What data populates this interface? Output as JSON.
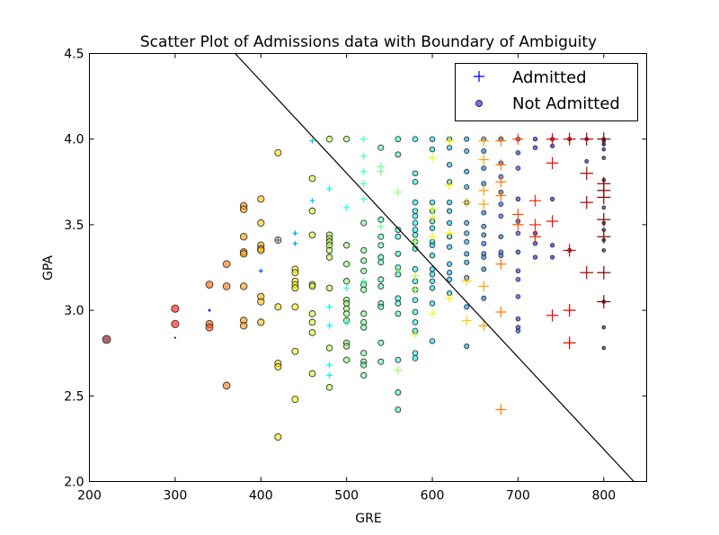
{
  "chart_data": {
    "type": "scatter",
    "title": "Scatter Plot of Admissions data with Boundary of Ambiguity",
    "xlabel": "GRE",
    "ylabel": "GPA",
    "xlim": [
      200,
      850
    ],
    "ylim": [
      2.0,
      4.5
    ],
    "xticks": [
      200,
      300,
      400,
      500,
      600,
      700,
      800
    ],
    "yticks": [
      2.0,
      2.5,
      3.0,
      3.5,
      4.0,
      4.5
    ],
    "xtick_labels": [
      "200",
      "300",
      "400",
      "500",
      "600",
      "700",
      "800"
    ],
    "ytick_labels": [
      "2.0",
      "2.5",
      "3.0",
      "3.5",
      "4.0",
      "4.5"
    ],
    "grid": false,
    "legend_position": "top-right",
    "boundary_line": {
      "points": [
        [
          370,
          4.5
        ],
        [
          835,
          2.0
        ]
      ],
      "color": "#000000"
    },
    "series": [
      {
        "name": "Admitted",
        "marker": "plus",
        "legend_color": "#0000ff",
        "points": [
          [
            300,
            2.84
          ],
          [
            340,
            3.0
          ],
          [
            400,
            3.23
          ],
          [
            420,
            3.41
          ],
          [
            440,
            3.45
          ],
          [
            440,
            3.39
          ],
          [
            460,
            3.99
          ],
          [
            460,
            3.64
          ],
          [
            480,
            3.71
          ],
          [
            480,
            3.02
          ],
          [
            480,
            2.91
          ],
          [
            480,
            2.68
          ],
          [
            480,
            2.62
          ],
          [
            500,
            3.6
          ],
          [
            500,
            3.13
          ],
          [
            500,
            2.93
          ],
          [
            520,
            4.0
          ],
          [
            520,
            3.9
          ],
          [
            520,
            3.81
          ],
          [
            520,
            3.74
          ],
          [
            520,
            3.65
          ],
          [
            520,
            3.17
          ],
          [
            540,
            3.84
          ],
          [
            540,
            3.81
          ],
          [
            540,
            3.49
          ],
          [
            560,
            3.69
          ],
          [
            560,
            2.65
          ],
          [
            560,
            3.23
          ],
          [
            580,
            3.4
          ],
          [
            580,
            3.2
          ],
          [
            580,
            3.12
          ],
          [
            580,
            2.86
          ],
          [
            600,
            3.89
          ],
          [
            600,
            3.59
          ],
          [
            600,
            3.54
          ],
          [
            600,
            3.43
          ],
          [
            600,
            2.98
          ],
          [
            620,
            3.99
          ],
          [
            620,
            3.73
          ],
          [
            620,
            3.45
          ],
          [
            620,
            3.07
          ],
          [
            640,
            3.63
          ],
          [
            640,
            3.17
          ],
          [
            640,
            2.94
          ],
          [
            660,
            3.99
          ],
          [
            660,
            3.88
          ],
          [
            660,
            3.7
          ],
          [
            660,
            3.62
          ],
          [
            660,
            3.14
          ],
          [
            660,
            2.91
          ],
          [
            680,
            3.99
          ],
          [
            680,
            3.85
          ],
          [
            680,
            3.75
          ],
          [
            680,
            3.67
          ],
          [
            680,
            3.27
          ],
          [
            680,
            2.99
          ],
          [
            680,
            2.42
          ],
          [
            700,
            4.0
          ],
          [
            700,
            3.56
          ],
          [
            700,
            3.5
          ],
          [
            720,
            3.64
          ],
          [
            720,
            3.5
          ],
          [
            720,
            3.43
          ],
          [
            740,
            4.0
          ],
          [
            740,
            3.86
          ],
          [
            740,
            3.52
          ],
          [
            740,
            2.97
          ],
          [
            760,
            4.0
          ],
          [
            760,
            3.35
          ],
          [
            760,
            3.0
          ],
          [
            760,
            2.81
          ],
          [
            780,
            4.0
          ],
          [
            780,
            3.8
          ],
          [
            780,
            3.63
          ],
          [
            780,
            3.22
          ],
          [
            800,
            4.0
          ],
          [
            800,
            3.74
          ],
          [
            800,
            3.7
          ],
          [
            800,
            3.66
          ],
          [
            800,
            3.53
          ],
          [
            800,
            3.43
          ],
          [
            800,
            3.22
          ],
          [
            800,
            3.05
          ]
        ]
      },
      {
        "name": "Not Admitted",
        "marker": "circle",
        "legend_color": "#7070ff",
        "points": [
          [
            220,
            2.83
          ],
          [
            300,
            3.01
          ],
          [
            300,
            2.92
          ],
          [
            340,
            3.15
          ],
          [
            340,
            2.92
          ],
          [
            340,
            2.9
          ],
          [
            360,
            3.27
          ],
          [
            360,
            3.14
          ],
          [
            360,
            2.56
          ],
          [
            380,
            3.61
          ],
          [
            380,
            3.59
          ],
          [
            380,
            3.43
          ],
          [
            380,
            3.34
          ],
          [
            380,
            3.33
          ],
          [
            380,
            3.14
          ],
          [
            380,
            2.94
          ],
          [
            380,
            2.91
          ],
          [
            400,
            3.65
          ],
          [
            400,
            3.51
          ],
          [
            400,
            3.38
          ],
          [
            400,
            3.36
          ],
          [
            400,
            3.35
          ],
          [
            400,
            3.08
          ],
          [
            400,
            3.05
          ],
          [
            400,
            2.93
          ],
          [
            420,
            3.92
          ],
          [
            420,
            3.41
          ],
          [
            420,
            3.02
          ],
          [
            420,
            2.69
          ],
          [
            420,
            2.67
          ],
          [
            420,
            2.26
          ],
          [
            440,
            3.24
          ],
          [
            440,
            3.22
          ],
          [
            440,
            3.17
          ],
          [
            440,
            3.15
          ],
          [
            440,
            3.13
          ],
          [
            440,
            3.02
          ],
          [
            440,
            2.76
          ],
          [
            440,
            2.48
          ],
          [
            460,
            3.77
          ],
          [
            460,
            3.58
          ],
          [
            460,
            3.44
          ],
          [
            460,
            3.15
          ],
          [
            460,
            3.14
          ],
          [
            460,
            2.98
          ],
          [
            460,
            2.93
          ],
          [
            460,
            2.87
          ],
          [
            460,
            2.63
          ],
          [
            480,
            4.0
          ],
          [
            480,
            3.44
          ],
          [
            480,
            3.42
          ],
          [
            480,
            3.4
          ],
          [
            480,
            3.38
          ],
          [
            480,
            3.35
          ],
          [
            480,
            3.31
          ],
          [
            480,
            3.13
          ],
          [
            480,
            2.78
          ],
          [
            480,
            2.55
          ],
          [
            500,
            4.0
          ],
          [
            500,
            3.38
          ],
          [
            500,
            3.27
          ],
          [
            500,
            3.17
          ],
          [
            500,
            3.06
          ],
          [
            500,
            3.04
          ],
          [
            500,
            3.01
          ],
          [
            500,
            2.98
          ],
          [
            500,
            2.94
          ],
          [
            500,
            2.81
          ],
          [
            500,
            2.71
          ],
          [
            500,
            2.79
          ],
          [
            520,
            3.51
          ],
          [
            520,
            3.35
          ],
          [
            520,
            3.29
          ],
          [
            520,
            3.23
          ],
          [
            520,
            3.15
          ],
          [
            520,
            3.12
          ],
          [
            520,
            2.98
          ],
          [
            520,
            2.93
          ],
          [
            520,
            2.9
          ],
          [
            520,
            2.75
          ],
          [
            520,
            2.7
          ],
          [
            520,
            2.68
          ],
          [
            520,
            2.62
          ],
          [
            540,
            3.95
          ],
          [
            540,
            3.53
          ],
          [
            540,
            3.43
          ],
          [
            540,
            3.38
          ],
          [
            540,
            3.31
          ],
          [
            540,
            3.28
          ],
          [
            540,
            3.18
          ],
          [
            540,
            3.14
          ],
          [
            540,
            3.04
          ],
          [
            540,
            3.02
          ],
          [
            540,
            2.81
          ],
          [
            540,
            2.7
          ],
          [
            560,
            4.0
          ],
          [
            560,
            3.91
          ],
          [
            560,
            3.47
          ],
          [
            560,
            3.43
          ],
          [
            560,
            3.33
          ],
          [
            560,
            3.25
          ],
          [
            560,
            3.21
          ],
          [
            560,
            3.07
          ],
          [
            560,
            3.04
          ],
          [
            560,
            2.98
          ],
          [
            560,
            2.71
          ],
          [
            560,
            2.52
          ],
          [
            560,
            2.42
          ],
          [
            580,
            4.0
          ],
          [
            580,
            3.8
          ],
          [
            580,
            3.75
          ],
          [
            580,
            3.63
          ],
          [
            580,
            3.58
          ],
          [
            580,
            3.55
          ],
          [
            580,
            3.51
          ],
          [
            580,
            3.47
          ],
          [
            580,
            3.44
          ],
          [
            580,
            3.4
          ],
          [
            580,
            3.36
          ],
          [
            580,
            3.24
          ],
          [
            580,
            3.17
          ],
          [
            580,
            3.12
          ],
          [
            580,
            3.06
          ],
          [
            580,
            2.99
          ],
          [
            580,
            2.93
          ],
          [
            580,
            2.88
          ],
          [
            580,
            2.75
          ],
          [
            580,
            2.72
          ],
          [
            600,
            4.0
          ],
          [
            600,
            3.94
          ],
          [
            600,
            3.63
          ],
          [
            600,
            3.58
          ],
          [
            600,
            3.52
          ],
          [
            600,
            3.48
          ],
          [
            600,
            3.4
          ],
          [
            600,
            3.38
          ],
          [
            600,
            3.32
          ],
          [
            600,
            3.24
          ],
          [
            600,
            3.21
          ],
          [
            600,
            3.17
          ],
          [
            600,
            3.13
          ],
          [
            600,
            3.04
          ],
          [
            600,
            2.82
          ],
          [
            620,
            4.0
          ],
          [
            620,
            3.95
          ],
          [
            620,
            3.85
          ],
          [
            620,
            3.75
          ],
          [
            620,
            3.63
          ],
          [
            620,
            3.58
          ],
          [
            620,
            3.51
          ],
          [
            620,
            3.43
          ],
          [
            620,
            3.37
          ],
          [
            620,
            3.27
          ],
          [
            620,
            3.22
          ],
          [
            620,
            3.18
          ],
          [
            620,
            3.1
          ],
          [
            640,
            4.0
          ],
          [
            640,
            3.93
          ],
          [
            640,
            3.81
          ],
          [
            640,
            3.72
          ],
          [
            640,
            3.63
          ],
          [
            640,
            3.51
          ],
          [
            640,
            3.45
          ],
          [
            640,
            3.4
          ],
          [
            640,
            3.33
          ],
          [
            640,
            3.28
          ],
          [
            640,
            3.19
          ],
          [
            640,
            3.02
          ],
          [
            640,
            2.79
          ],
          [
            660,
            4.0
          ],
          [
            660,
            3.93
          ],
          [
            660,
            3.83
          ],
          [
            660,
            3.74
          ],
          [
            660,
            3.57
          ],
          [
            660,
            3.49
          ],
          [
            660,
            3.44
          ],
          [
            660,
            3.39
          ],
          [
            660,
            3.33
          ],
          [
            660,
            3.31
          ],
          [
            660,
            3.24
          ],
          [
            660,
            3.07
          ],
          [
            680,
            4.0
          ],
          [
            680,
            3.86
          ],
          [
            680,
            3.78
          ],
          [
            680,
            3.69
          ],
          [
            680,
            3.62
          ],
          [
            680,
            3.55
          ],
          [
            680,
            3.43
          ],
          [
            680,
            3.34
          ],
          [
            680,
            3.32
          ],
          [
            700,
            4.0
          ],
          [
            700,
            3.92
          ],
          [
            700,
            3.83
          ],
          [
            700,
            3.65
          ],
          [
            700,
            3.52
          ],
          [
            700,
            3.45
          ],
          [
            700,
            3.34
          ],
          [
            700,
            3.23
          ],
          [
            700,
            3.18
          ],
          [
            700,
            3.08
          ],
          [
            700,
            2.95
          ],
          [
            700,
            2.9
          ],
          [
            700,
            2.88
          ],
          [
            720,
            4.0
          ],
          [
            720,
            3.95
          ],
          [
            720,
            3.45
          ],
          [
            720,
            3.39
          ],
          [
            720,
            3.31
          ],
          [
            740,
            4.0
          ],
          [
            740,
            3.96
          ],
          [
            740,
            3.65
          ],
          [
            740,
            3.38
          ],
          [
            740,
            3.31
          ],
          [
            760,
            4.0
          ],
          [
            760,
            3.35
          ],
          [
            780,
            4.0
          ],
          [
            780,
            3.87
          ],
          [
            800,
            4.0
          ],
          [
            800,
            3.99
          ],
          [
            800,
            3.97
          ],
          [
            800,
            3.94
          ],
          [
            800,
            3.89
          ],
          [
            800,
            3.76
          ],
          [
            800,
            3.6
          ],
          [
            800,
            3.51
          ],
          [
            800,
            3.47
          ],
          [
            800,
            3.41
          ],
          [
            800,
            3.35
          ],
          [
            800,
            3.05
          ],
          [
            800,
            2.9
          ],
          [
            800,
            2.78
          ]
        ]
      }
    ]
  }
}
